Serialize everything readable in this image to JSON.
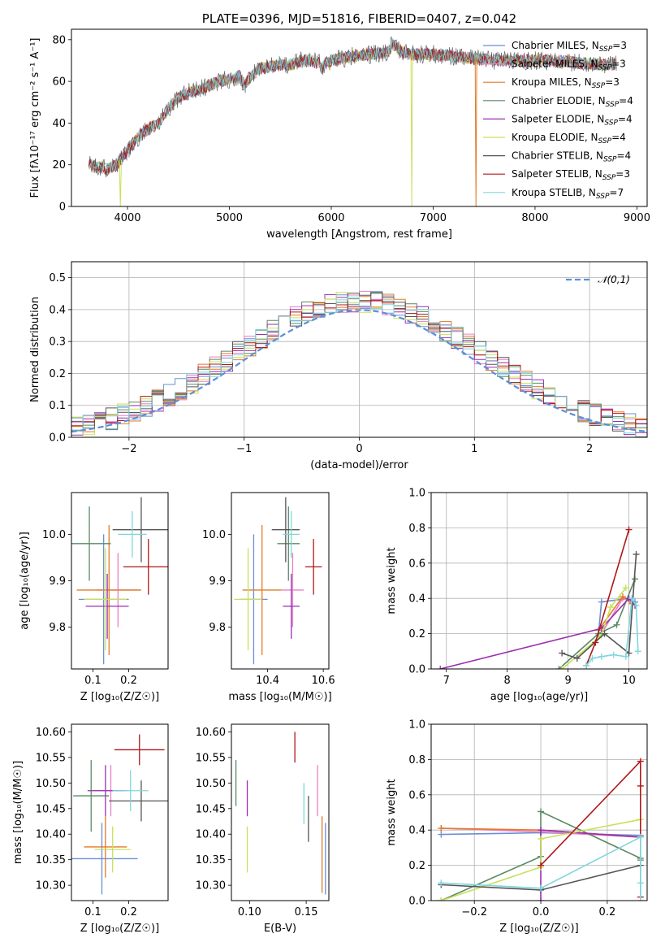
{
  "palette": {
    "Chabrier MILES": "#6b8ed6",
    "Salpeter MILES": "#e87fc4",
    "Kroupa MILES": "#e07b28",
    "Chabrier ELODIE": "#5a8a64",
    "Salpeter ELODIE": "#9a2fb0",
    "Kroupa ELODIE": "#c8e05c",
    "Chabrier STELIB": "#555555",
    "Salpeter STELIB": "#b01818",
    "Kroupa STELIB": "#7fd6dc"
  },
  "chart_data": [
    {
      "id": "spectrum",
      "type": "line",
      "title": "PLATE=0396, MJD=51816, FIBERID=0407, z=0.042",
      "xlabel": "wavelength [Angstrom, rest frame]",
      "ylabel": "Flux [fλ10⁻¹⁷ erg cm⁻² s⁻¹ A⁻¹]",
      "xlim": [
        3450,
        9100
      ],
      "ylim": [
        0,
        85
      ],
      "xticks": [
        4000,
        5000,
        6000,
        7000,
        8000,
        9000
      ],
      "yticks": [
        0,
        20,
        40,
        60,
        80
      ],
      "grid": false,
      "legend_position": "right",
      "legend": [
        {
          "model": "Chabrier MILES",
          "label": "Chabrier MILES, N",
          "sub": "SSP",
          "suffix": "=3"
        },
        {
          "model": "Salpeter MILES",
          "label": "Salpeter MILES, N",
          "sub": "SSP",
          "suffix": "=3"
        },
        {
          "model": "Kroupa MILES",
          "label": "Kroupa MILES, N",
          "sub": "SSP",
          "suffix": "=3"
        },
        {
          "model": "Chabrier ELODIE",
          "label": "Chabrier ELODIE, N",
          "sub": "SSP",
          "suffix": "=4"
        },
        {
          "model": "Salpeter ELODIE",
          "label": "Salpeter ELODIE, N",
          "sub": "SSP",
          "suffix": "=4"
        },
        {
          "model": "Kroupa ELODIE",
          "label": "Kroupa ELODIE, N",
          "sub": "SSP",
          "suffix": "=4"
        },
        {
          "model": "Chabrier STELIB",
          "label": "Chabrier STELIB, N",
          "sub": "SSP",
          "suffix": "=4"
        },
        {
          "model": "Salpeter STELIB",
          "label": "Salpeter STELIB, N",
          "sub": "SSP",
          "suffix": "=3"
        },
        {
          "model": "Kroupa STELIB",
          "label": "Kroupa STELIB, N",
          "sub": "SSP",
          "suffix": "=7"
        }
      ],
      "continuum": [
        [
          3620,
          20
        ],
        [
          3700,
          19
        ],
        [
          3800,
          18
        ],
        [
          3900,
          20
        ],
        [
          3950,
          24
        ],
        [
          4000,
          27
        ],
        [
          4100,
          33
        ],
        [
          4200,
          37
        ],
        [
          4300,
          40
        ],
        [
          4400,
          47
        ],
        [
          4500,
          52
        ],
        [
          4600,
          55
        ],
        [
          4700,
          56
        ],
        [
          4800,
          58
        ],
        [
          4900,
          60
        ],
        [
          5000,
          61
        ],
        [
          5100,
          63
        ],
        [
          5150,
          58
        ],
        [
          5200,
          62
        ],
        [
          5300,
          66
        ],
        [
          5400,
          67
        ],
        [
          5500,
          68
        ],
        [
          5600,
          68
        ],
        [
          5700,
          70
        ],
        [
          5800,
          70
        ],
        [
          5880,
          69
        ],
        [
          5900,
          66
        ],
        [
          5950,
          69
        ],
        [
          6000,
          70
        ],
        [
          6200,
          72
        ],
        [
          6400,
          73
        ],
        [
          6560,
          74
        ],
        [
          6600,
          78
        ],
        [
          6700,
          74
        ],
        [
          6800,
          73
        ],
        [
          7000,
          73
        ],
        [
          7200,
          72
        ],
        [
          7400,
          71
        ],
        [
          7600,
          70
        ],
        [
          7800,
          70
        ],
        [
          8000,
          70
        ],
        [
          8200,
          70
        ],
        [
          8400,
          69
        ],
        [
          8600,
          68
        ],
        [
          8800,
          68
        ]
      ],
      "dips": [
        {
          "x": 3930,
          "w": 10,
          "to": 0
        },
        {
          "x": 6790,
          "w": 8,
          "to": 0
        },
        {
          "x": 7420,
          "w": 8,
          "to": 0
        }
      ]
    },
    {
      "id": "residuals",
      "type": "histogram",
      "xlabel": "(data-model)/error",
      "ylabel": "Normed distribution",
      "xlim": [
        -2.5,
        2.5
      ],
      "ylim": [
        0,
        0.55
      ],
      "xticks": [
        -2,
        -1,
        0,
        1,
        2
      ],
      "yticks": [
        0.0,
        0.1,
        0.2,
        0.3,
        0.4,
        0.5
      ],
      "grid": true,
      "legend": "𝒩(0,1)",
      "legend_position": "upper right",
      "bin_width": 0.1,
      "reference_curve": "normal(0,1)"
    },
    {
      "id": "age-vs-Z",
      "type": "errorbar",
      "xlabel": "Z [log₁₀(Z/Z☉)]",
      "ylabel": "age  [log₁₀(age/yr)]",
      "xlim": [
        0.04,
        0.31
      ],
      "ylim": [
        9.71,
        10.09
      ],
      "xticks": [
        0.1,
        0.2
      ],
      "yticks": [
        9.8,
        9.9,
        10.0
      ],
      "grid": false,
      "points": [
        {
          "model": "Chabrier MILES",
          "x": 0.13,
          "xerr": 0.07,
          "y": 9.86,
          "yerr": 0.14
        },
        {
          "model": "Salpeter MILES",
          "x": 0.17,
          "xerr": 0.06,
          "y": 9.88,
          "yerr": 0.08
        },
        {
          "model": "Kroupa MILES",
          "x": 0.145,
          "xerr": 0.09,
          "y": 9.88,
          "yerr": 0.14
        },
        {
          "model": "Chabrier ELODIE",
          "x": 0.09,
          "xerr": 0.06,
          "y": 9.98,
          "yerr": 0.08
        },
        {
          "model": "Salpeter ELODIE",
          "x": 0.14,
          "xerr": 0.06,
          "y": 9.845,
          "yerr": 0.07
        },
        {
          "model": "Kroupa ELODIE",
          "x": 0.135,
          "xerr": 0.06,
          "y": 9.86,
          "yerr": 0.11
        },
        {
          "model": "Chabrier STELIB",
          "x": 0.235,
          "xerr": 0.08,
          "y": 10.01,
          "yerr": 0.07
        },
        {
          "model": "Salpeter STELIB",
          "x": 0.255,
          "xerr": 0.07,
          "y": 9.93,
          "yerr": 0.06
        },
        {
          "model": "Kroupa STELIB",
          "x": 0.21,
          "xerr": 0.04,
          "y": 10.0,
          "yerr": 0.05
        }
      ]
    },
    {
      "id": "age-vs-mass",
      "type": "errorbar",
      "xlabel": "mass [log₁₀(M/M☉)]",
      "ylabel": "",
      "xlim": [
        10.27,
        10.62
      ],
      "ylim": [
        9.71,
        10.09
      ],
      "xticks": [
        10.4,
        10.6
      ],
      "yticks": [
        9.8,
        9.9,
        10.0
      ],
      "grid": false,
      "points": [
        {
          "model": "Chabrier MILES",
          "x": 10.35,
          "xerr": 0.05,
          "y": 9.86,
          "yerr": 0.14
        },
        {
          "model": "Salpeter MILES",
          "x": 10.49,
          "xerr": 0.04,
          "y": 9.88,
          "yerr": 0.08
        },
        {
          "model": "Kroupa MILES",
          "x": 10.38,
          "xerr": 0.07,
          "y": 9.88,
          "yerr": 0.14
        },
        {
          "model": "Chabrier ELODIE",
          "x": 10.475,
          "xerr": 0.04,
          "y": 9.98,
          "yerr": 0.08
        },
        {
          "model": "Salpeter ELODIE",
          "x": 10.485,
          "xerr": 0.03,
          "y": 9.845,
          "yerr": 0.07
        },
        {
          "model": "Kroupa ELODIE",
          "x": 10.33,
          "xerr": 0.05,
          "y": 9.86,
          "yerr": 0.11
        },
        {
          "model": "Chabrier STELIB",
          "x": 10.465,
          "xerr": 0.05,
          "y": 10.01,
          "yerr": 0.07
        },
        {
          "model": "Salpeter STELIB",
          "x": 10.565,
          "xerr": 0.03,
          "y": 9.93,
          "yerr": 0.06
        },
        {
          "model": "Kroupa STELIB",
          "x": 10.485,
          "xerr": 0.03,
          "y": 10.0,
          "yerr": 0.05
        }
      ]
    },
    {
      "id": "weight-vs-age",
      "type": "line",
      "xlabel": "age  [log₁₀(age/yr)]",
      "ylabel": "mass weight",
      "xlim": [
        6.75,
        10.3
      ],
      "ylim": [
        0,
        1.0
      ],
      "xticks": [
        7,
        8,
        9,
        10
      ],
      "yticks": [
        0.0,
        0.2,
        0.4,
        0.6,
        0.8,
        1.0
      ],
      "grid": true,
      "series": [
        {
          "model": "Chabrier MILES",
          "x": [
            9.5,
            9.55,
            10.0,
            10.1
          ],
          "y": [
            0.2,
            0.38,
            0.4,
            0.38
          ]
        },
        {
          "model": "Salpeter MILES",
          "x": [
            9.55,
            9.9,
            10.05
          ],
          "y": [
            0.2,
            0.4,
            0.4
          ]
        },
        {
          "model": "Kroupa MILES",
          "x": [
            9.5,
            9.9,
            10.05
          ],
          "y": [
            0.22,
            0.41,
            0.37
          ]
        },
        {
          "model": "Chabrier ELODIE",
          "x": [
            8.85,
            9.5,
            9.8,
            10.1
          ],
          "y": [
            0.0,
            0.2,
            0.25,
            0.51
          ]
        },
        {
          "model": "Salpeter ELODIE",
          "x": [
            6.9,
            9.55,
            10.0,
            10.1
          ],
          "y": [
            0.0,
            0.23,
            0.4,
            0.36
          ]
        },
        {
          "model": "Kroupa ELODIE",
          "x": [
            8.9,
            9.55,
            9.7,
            9.95
          ],
          "y": [
            0.0,
            0.19,
            0.35,
            0.46
          ]
        },
        {
          "model": "Chabrier STELIB",
          "x": [
            8.9,
            9.15,
            9.6,
            10.0,
            10.12
          ],
          "y": [
            0.09,
            0.06,
            0.2,
            0.09,
            0.65
          ]
        },
        {
          "model": "Salpeter STELIB",
          "x": [
            9.3,
            9.45,
            10.0
          ],
          "y": [
            0.02,
            0.15,
            0.79
          ]
        },
        {
          "model": "Kroupa STELIB",
          "x": [
            9.3,
            9.4,
            9.55,
            9.75,
            9.95,
            10.05,
            10.12,
            10.15
          ],
          "y": [
            0.02,
            0.06,
            0.07,
            0.08,
            0.07,
            0.4,
            0.36,
            0.1
          ]
        }
      ]
    },
    {
      "id": "mass-vs-Z",
      "type": "errorbar",
      "xlabel": "Z [log₁₀(Z/Z☉)]",
      "ylabel": "mass [log₁₀(M/M☉)]",
      "xlim": [
        0.04,
        0.31
      ],
      "ylim": [
        10.27,
        10.615
      ],
      "xticks": [
        0.1,
        0.2
      ],
      "yticks": [
        10.3,
        10.35,
        10.4,
        10.45,
        10.5,
        10.55,
        10.6
      ],
      "grid": false,
      "points": [
        {
          "model": "Chabrier MILES",
          "x": 0.125,
          "xerr": 0.1,
          "y": 10.352,
          "yerr": 0.07
        },
        {
          "model": "Salpeter MILES",
          "x": 0.15,
          "xerr": 0.05,
          "y": 10.485,
          "yerr": 0.05
        },
        {
          "model": "Kroupa MILES",
          "x": 0.135,
          "xerr": 0.06,
          "y": 10.375,
          "yerr": 0.06
        },
        {
          "model": "Chabrier ELODIE",
          "x": 0.095,
          "xerr": 0.05,
          "y": 10.475,
          "yerr": 0.07
        },
        {
          "model": "Salpeter ELODIE",
          "x": 0.135,
          "xerr": 0.05,
          "y": 10.485,
          "yerr": 0.05
        },
        {
          "model": "Kroupa ELODIE",
          "x": 0.155,
          "xerr": 0.05,
          "y": 10.37,
          "yerr": 0.045
        },
        {
          "model": "Chabrier STELIB",
          "x": 0.235,
          "xerr": 0.09,
          "y": 10.465,
          "yerr": 0.04
        },
        {
          "model": "Salpeter STELIB",
          "x": 0.23,
          "xerr": 0.07,
          "y": 10.565,
          "yerr": 0.03
        },
        {
          "model": "Kroupa STELIB",
          "x": 0.205,
          "xerr": 0.05,
          "y": 10.485,
          "yerr": 0.04
        }
      ]
    },
    {
      "id": "mass-vs-ebv",
      "type": "errorbar",
      "xlabel": "E(B-V)",
      "ylabel": "",
      "xlim": [
        0.084,
        0.17
      ],
      "ylim": [
        10.27,
        10.615
      ],
      "xticks": [
        0.1,
        0.15
      ],
      "yticks": [
        10.3,
        10.35,
        10.4,
        10.45,
        10.5,
        10.55,
        10.6
      ],
      "grid": false,
      "points": [
        {
          "model": "Chabrier MILES",
          "x": 0.167,
          "xerr": 0,
          "y": 10.352,
          "yerr": 0.07
        },
        {
          "model": "Salpeter MILES",
          "x": 0.16,
          "xerr": 0,
          "y": 10.485,
          "yerr": 0.05
        },
        {
          "model": "Kroupa MILES",
          "x": 0.164,
          "xerr": 0,
          "y": 10.36,
          "yerr": 0.075
        },
        {
          "model": "Chabrier ELODIE",
          "x": 0.088,
          "xerr": 0,
          "y": 10.5,
          "yerr": 0.045
        },
        {
          "model": "Salpeter ELODIE",
          "x": 0.098,
          "xerr": 0,
          "y": 10.47,
          "yerr": 0.035
        },
        {
          "model": "Kroupa ELODIE",
          "x": 0.098,
          "xerr": 0,
          "y": 10.37,
          "yerr": 0.045
        },
        {
          "model": "Chabrier STELIB",
          "x": 0.152,
          "xerr": 0,
          "y": 10.43,
          "yerr": 0.045
        },
        {
          "model": "Salpeter STELIB",
          "x": 0.14,
          "xerr": 0,
          "y": 10.57,
          "yerr": 0.03
        },
        {
          "model": "Kroupa STELIB",
          "x": 0.148,
          "xerr": 0,
          "y": 10.46,
          "yerr": 0.04
        }
      ]
    },
    {
      "id": "weight-vs-Z",
      "type": "line",
      "xlabel": "Z [log₁₀(Z/Z☉)]",
      "ylabel": "mass weight",
      "xlim": [
        -0.33,
        0.32
      ],
      "ylim": [
        0,
        1.0
      ],
      "xticks": [
        -0.2,
        0.0,
        0.2
      ],
      "yticks": [
        0.0,
        0.2,
        0.4,
        0.6,
        0.8,
        1.0
      ],
      "grid": true,
      "series": [
        {
          "model": "Chabrier MILES",
          "x": [
            -0.3,
            0.0,
            0.3
          ],
          "y": [
            0.375,
            0.385,
            0.37
          ]
        },
        {
          "model": "Salpeter MILES",
          "x": [
            -0.3,
            0.0,
            0.3
          ],
          "y": [
            0.41,
            0.39,
            0.36
          ]
        },
        {
          "model": "Kroupa MILES",
          "x": [
            -0.3,
            0.0,
            0.3
          ],
          "y": [
            0.41,
            0.4,
            0.36
          ]
        },
        {
          "model": "Chabrier ELODIE",
          "x": [
            -0.3,
            0.0,
            0.0,
            0.3,
            0.3
          ],
          "y": [
            0.0,
            0.25,
            0.505,
            0.24,
            0.23
          ]
        },
        {
          "model": "Salpeter ELODIE",
          "x": [
            0.0,
            0.0,
            0.3
          ],
          "y": [
            0.0,
            0.4,
            0.36
          ]
        },
        {
          "model": "Kroupa ELODIE",
          "x": [
            -0.3,
            0.0,
            0.0,
            0.3
          ],
          "y": [
            0.0,
            0.19,
            0.35,
            0.46
          ]
        },
        {
          "model": "Chabrier STELIB",
          "x": [
            -0.3,
            0.0,
            0.3
          ],
          "y": [
            0.09,
            0.06,
            0.2
          ]
        },
        {
          "model": "Salpeter STELIB",
          "x": [
            0.0,
            0.3,
            0.3,
            0.3
          ],
          "y": [
            0.2,
            0.79,
            0.65,
            0.02
          ]
        },
        {
          "model": "Kroupa STELIB",
          "x": [
            -0.3,
            0.0,
            0.3,
            0.3,
            0.3
          ],
          "y": [
            0.1,
            0.07,
            0.36,
            0.1,
            0.0
          ]
        }
      ]
    }
  ]
}
